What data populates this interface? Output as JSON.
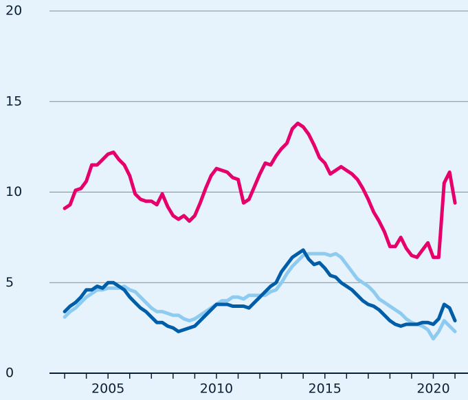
{
  "chart_data": {
    "type": "line",
    "x": [
      2003,
      2003.25,
      2003.5,
      2003.75,
      2004,
      2004.25,
      2004.5,
      2004.75,
      2005,
      2005.25,
      2005.5,
      2005.75,
      2006,
      2006.25,
      2006.5,
      2006.75,
      2007,
      2007.25,
      2007.5,
      2007.75,
      2008,
      2008.25,
      2008.5,
      2008.75,
      2009,
      2009.25,
      2009.5,
      2009.75,
      2010,
      2010.25,
      2010.5,
      2010.75,
      2011,
      2011.25,
      2011.5,
      2011.75,
      2012,
      2012.25,
      2012.5,
      2012.75,
      2013,
      2013.25,
      2013.5,
      2013.75,
      2014,
      2014.25,
      2014.5,
      2014.75,
      2015,
      2015.25,
      2015.5,
      2015.75,
      2016,
      2016.25,
      2016.5,
      2016.75,
      2017,
      2017.25,
      2017.5,
      2017.75,
      2018,
      2018.25,
      2018.5,
      2018.75,
      2019,
      2019.25,
      2019.5,
      2019.75,
      2020,
      2020.25,
      2020.5,
      2020.75,
      2021
    ],
    "series": [
      {
        "color": "#e5006b",
        "values": [
          9.1,
          9.3,
          10.1,
          10.2,
          10.6,
          11.5,
          11.5,
          11.8,
          12.1,
          12.2,
          11.8,
          11.5,
          10.9,
          9.9,
          9.6,
          9.5,
          9.5,
          9.3,
          9.9,
          9.2,
          8.7,
          8.5,
          8.7,
          8.4,
          8.7,
          9.4,
          10.2,
          10.9,
          11.3,
          11.2,
          11.1,
          10.8,
          10.7,
          9.4,
          9.6,
          10.3,
          11.0,
          11.6,
          11.5,
          12.0,
          12.4,
          12.7,
          13.5,
          13.8,
          13.6,
          13.2,
          12.6,
          11.9,
          11.6,
          11.0,
          11.2,
          11.4,
          11.2,
          11.0,
          10.7,
          10.2,
          9.6,
          8.9,
          8.4,
          7.8,
          7.0,
          7.0,
          7.5,
          6.9,
          6.5,
          6.4,
          6.8,
          7.2,
          6.4,
          6.4,
          10.5,
          11.1,
          9.4
        ]
      },
      {
        "color": "#8ecbf0",
        "values": [
          3.1,
          3.4,
          3.6,
          3.9,
          4.2,
          4.4,
          4.6,
          4.6,
          4.7,
          4.7,
          4.7,
          4.8,
          4.6,
          4.5,
          4.2,
          3.9,
          3.6,
          3.4,
          3.4,
          3.3,
          3.2,
          3.2,
          3.0,
          2.9,
          3.0,
          3.2,
          3.4,
          3.6,
          3.8,
          4.0,
          4.0,
          4.2,
          4.2,
          4.1,
          4.3,
          4.3,
          4.3,
          4.3,
          4.5,
          4.6,
          5.0,
          5.5,
          5.9,
          6.2,
          6.5,
          6.6,
          6.6,
          6.6,
          6.6,
          6.5,
          6.6,
          6.4,
          6.0,
          5.6,
          5.2,
          5.0,
          4.8,
          4.5,
          4.1,
          3.9,
          3.7,
          3.5,
          3.3,
          3.0,
          2.8,
          2.7,
          2.6,
          2.4,
          1.9,
          2.3,
          2.9,
          2.6,
          2.3
        ]
      },
      {
        "color": "#005ea8",
        "values": [
          3.4,
          3.7,
          3.9,
          4.2,
          4.6,
          4.6,
          4.8,
          4.7,
          5.0,
          5.0,
          4.8,
          4.6,
          4.2,
          3.9,
          3.6,
          3.4,
          3.1,
          2.8,
          2.8,
          2.6,
          2.5,
          2.3,
          2.4,
          2.5,
          2.6,
          2.9,
          3.2,
          3.5,
          3.8,
          3.8,
          3.8,
          3.7,
          3.7,
          3.7,
          3.6,
          3.9,
          4.2,
          4.5,
          4.8,
          5.0,
          5.6,
          6.0,
          6.4,
          6.6,
          6.8,
          6.3,
          6.0,
          6.1,
          5.8,
          5.4,
          5.3,
          5.0,
          4.8,
          4.6,
          4.3,
          4.0,
          3.8,
          3.7,
          3.5,
          3.2,
          2.9,
          2.7,
          2.6,
          2.7,
          2.7,
          2.7,
          2.8,
          2.8,
          2.7,
          3.0,
          3.8,
          3.6,
          2.9
        ]
      }
    ],
    "xlim": [
      2002.3,
      2021.6
    ],
    "xticks": [
      2005,
      2010,
      2015,
      2020
    ],
    "xminorticks": [
      2003,
      2004,
      2005,
      2006,
      2007,
      2008,
      2009,
      2010,
      2011,
      2012,
      2013,
      2014,
      2015,
      2016,
      2017,
      2018,
      2019,
      2020,
      2021
    ],
    "ylim": [
      0,
      20
    ],
    "yticks": [
      0,
      5,
      10,
      15,
      20
    ],
    "grid": true
  }
}
